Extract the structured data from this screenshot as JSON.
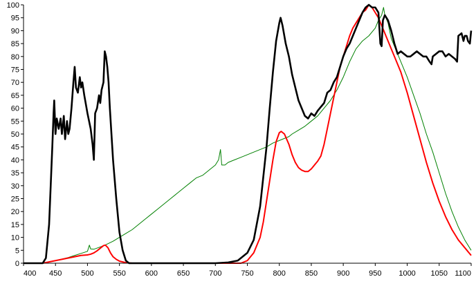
{
  "chart_data": {
    "type": "line",
    "title": "",
    "xlabel": "",
    "ylabel": "",
    "xlim": [
      400,
      1100
    ],
    "ylim": [
      0,
      100
    ],
    "x_ticks": [
      400,
      450,
      500,
      550,
      600,
      650,
      700,
      750,
      800,
      850,
      900,
      950,
      1000,
      1050,
      1100
    ],
    "y_ticks": [
      0,
      5,
      10,
      15,
      20,
      25,
      30,
      35,
      40,
      45,
      50,
      55,
      60,
      65,
      70,
      75,
      80,
      85,
      90,
      95,
      100
    ],
    "grid": false,
    "legend": "none",
    "series": [
      {
        "color": "#000000",
        "points": [
          [
            400,
            0
          ],
          [
            430,
            0
          ],
          [
            435,
            2
          ],
          [
            440,
            15
          ],
          [
            445,
            45
          ],
          [
            447,
            58
          ],
          [
            448,
            63
          ],
          [
            450,
            50
          ],
          [
            452,
            56
          ],
          [
            455,
            52
          ],
          [
            458,
            56
          ],
          [
            460,
            50
          ],
          [
            463,
            57
          ],
          [
            465,
            48
          ],
          [
            468,
            55
          ],
          [
            470,
            50
          ],
          [
            472,
            52
          ],
          [
            475,
            60
          ],
          [
            478,
            70
          ],
          [
            480,
            76
          ],
          [
            482,
            68
          ],
          [
            485,
            66
          ],
          [
            488,
            72
          ],
          [
            490,
            68
          ],
          [
            492,
            70
          ],
          [
            495,
            65
          ],
          [
            500,
            58
          ],
          [
            505,
            52
          ],
          [
            508,
            46
          ],
          [
            510,
            40
          ],
          [
            512,
            58
          ],
          [
            515,
            60
          ],
          [
            518,
            65
          ],
          [
            520,
            62
          ],
          [
            522,
            67
          ],
          [
            525,
            70
          ],
          [
            527,
            82
          ],
          [
            529,
            80
          ],
          [
            531,
            76
          ],
          [
            533,
            70
          ],
          [
            535,
            60
          ],
          [
            540,
            40
          ],
          [
            545,
            25
          ],
          [
            550,
            12
          ],
          [
            555,
            5
          ],
          [
            560,
            1
          ],
          [
            565,
            0
          ],
          [
            700,
            0
          ],
          [
            720,
            0.3
          ],
          [
            735,
            1
          ],
          [
            750,
            4
          ],
          [
            760,
            9
          ],
          [
            770,
            22
          ],
          [
            780,
            45
          ],
          [
            785,
            60
          ],
          [
            790,
            74
          ],
          [
            795,
            86
          ],
          [
            800,
            93
          ],
          [
            802,
            95
          ],
          [
            805,
            92
          ],
          [
            810,
            85
          ],
          [
            815,
            80
          ],
          [
            820,
            73
          ],
          [
            825,
            68
          ],
          [
            830,
            63
          ],
          [
            835,
            60
          ],
          [
            840,
            57
          ],
          [
            845,
            56
          ],
          [
            850,
            58
          ],
          [
            855,
            57
          ],
          [
            860,
            59
          ],
          [
            870,
            62
          ],
          [
            875,
            66
          ],
          [
            880,
            67
          ],
          [
            885,
            70
          ],
          [
            890,
            72
          ],
          [
            895,
            76
          ],
          [
            900,
            80
          ],
          [
            905,
            83
          ],
          [
            910,
            85
          ],
          [
            915,
            88
          ],
          [
            920,
            91
          ],
          [
            925,
            94
          ],
          [
            930,
            97
          ],
          [
            935,
            99
          ],
          [
            940,
            100
          ],
          [
            945,
            99
          ],
          [
            950,
            99
          ],
          [
            955,
            97
          ],
          [
            958,
            85
          ],
          [
            960,
            84
          ],
          [
            962,
            94
          ],
          [
            965,
            96
          ],
          [
            970,
            94
          ],
          [
            975,
            90
          ],
          [
            980,
            85
          ],
          [
            985,
            81
          ],
          [
            990,
            82
          ],
          [
            995,
            81
          ],
          [
            1000,
            80
          ],
          [
            1005,
            80
          ],
          [
            1010,
            81
          ],
          [
            1015,
            82
          ],
          [
            1020,
            81
          ],
          [
            1025,
            80
          ],
          [
            1030,
            80
          ],
          [
            1035,
            78
          ],
          [
            1038,
            77
          ],
          [
            1040,
            80
          ],
          [
            1045,
            81
          ],
          [
            1050,
            82
          ],
          [
            1055,
            82
          ],
          [
            1060,
            80
          ],
          [
            1065,
            81
          ],
          [
            1070,
            80
          ],
          [
            1075,
            79
          ],
          [
            1078,
            78
          ],
          [
            1080,
            88
          ],
          [
            1085,
            89
          ],
          [
            1088,
            86
          ],
          [
            1090,
            88
          ],
          [
            1093,
            88
          ],
          [
            1095,
            86
          ],
          [
            1098,
            85
          ],
          [
            1100,
            90
          ]
        ]
      },
      {
        "color": "#ff0000",
        "points": [
          [
            400,
            0
          ],
          [
            430,
            0
          ],
          [
            440,
            0.5
          ],
          [
            450,
            1
          ],
          [
            460,
            1.5
          ],
          [
            470,
            2
          ],
          [
            480,
            2.5
          ],
          [
            490,
            3
          ],
          [
            500,
            3.2
          ],
          [
            505,
            3.5
          ],
          [
            510,
            4
          ],
          [
            515,
            4.8
          ],
          [
            520,
            5.8
          ],
          [
            525,
            6.8
          ],
          [
            528,
            7
          ],
          [
            532,
            6
          ],
          [
            536,
            4
          ],
          [
            540,
            2.5
          ],
          [
            545,
            1.5
          ],
          [
            550,
            0.8
          ],
          [
            560,
            0.2
          ],
          [
            570,
            0
          ],
          [
            740,
            0
          ],
          [
            750,
            1
          ],
          [
            760,
            4
          ],
          [
            770,
            10
          ],
          [
            775,
            16
          ],
          [
            780,
            24
          ],
          [
            785,
            32
          ],
          [
            790,
            40
          ],
          [
            795,
            47
          ],
          [
            800,
            50.5
          ],
          [
            803,
            51
          ],
          [
            808,
            50
          ],
          [
            815,
            46
          ],
          [
            820,
            42
          ],
          [
            825,
            39
          ],
          [
            830,
            37
          ],
          [
            835,
            36
          ],
          [
            840,
            35.5
          ],
          [
            845,
            35.5
          ],
          [
            850,
            36.5
          ],
          [
            855,
            38
          ],
          [
            860,
            39.5
          ],
          [
            865,
            41.5
          ],
          [
            870,
            46
          ],
          [
            875,
            52
          ],
          [
            880,
            58
          ],
          [
            885,
            64
          ],
          [
            890,
            70
          ],
          [
            895,
            76
          ],
          [
            900,
            80
          ],
          [
            905,
            84
          ],
          [
            910,
            88
          ],
          [
            915,
            91
          ],
          [
            920,
            93
          ],
          [
            925,
            95
          ],
          [
            930,
            97
          ],
          [
            935,
            98
          ],
          [
            940,
            100
          ],
          [
            945,
            99
          ],
          [
            950,
            97
          ],
          [
            955,
            95
          ],
          [
            960,
            92
          ],
          [
            965,
            89
          ],
          [
            970,
            86
          ],
          [
            975,
            83
          ],
          [
            980,
            80
          ],
          [
            990,
            74
          ],
          [
            1000,
            66
          ],
          [
            1010,
            57
          ],
          [
            1020,
            48
          ],
          [
            1030,
            39
          ],
          [
            1040,
            31
          ],
          [
            1050,
            24
          ],
          [
            1060,
            18
          ],
          [
            1070,
            13
          ],
          [
            1080,
            9
          ],
          [
            1090,
            6
          ],
          [
            1100,
            3
          ]
        ]
      },
      {
        "color": "#008000",
        "points": [
          [
            400,
            0
          ],
          [
            430,
            0
          ],
          [
            440,
            0.5
          ],
          [
            450,
            1
          ],
          [
            460,
            1.6
          ],
          [
            470,
            2.2
          ],
          [
            480,
            3
          ],
          [
            490,
            3.8
          ],
          [
            500,
            4.6
          ],
          [
            503,
            7
          ],
          [
            505,
            5.5
          ],
          [
            510,
            5.4
          ],
          [
            520,
            6.3
          ],
          [
            530,
            7.3
          ],
          [
            540,
            8.5
          ],
          [
            550,
            10
          ],
          [
            560,
            11.5
          ],
          [
            570,
            13
          ],
          [
            580,
            15
          ],
          [
            590,
            17
          ],
          [
            600,
            19
          ],
          [
            610,
            21
          ],
          [
            620,
            23
          ],
          [
            630,
            25
          ],
          [
            640,
            27
          ],
          [
            650,
            29
          ],
          [
            660,
            31
          ],
          [
            670,
            33
          ],
          [
            680,
            34
          ],
          [
            690,
            36
          ],
          [
            700,
            38
          ],
          [
            705,
            40
          ],
          [
            708,
            44
          ],
          [
            710,
            38
          ],
          [
            715,
            38
          ],
          [
            720,
            39
          ],
          [
            730,
            40
          ],
          [
            740,
            41
          ],
          [
            750,
            42
          ],
          [
            760,
            43
          ],
          [
            770,
            44
          ],
          [
            780,
            45
          ],
          [
            790,
            46.5
          ],
          [
            800,
            47.5
          ],
          [
            810,
            48.5
          ],
          [
            815,
            49
          ],
          [
            820,
            50
          ],
          [
            830,
            51.5
          ],
          [
            840,
            53
          ],
          [
            850,
            55
          ],
          [
            860,
            57
          ],
          [
            870,
            60
          ],
          [
            880,
            63
          ],
          [
            890,
            67
          ],
          [
            900,
            72
          ],
          [
            910,
            78
          ],
          [
            920,
            83
          ],
          [
            930,
            86
          ],
          [
            940,
            88
          ],
          [
            950,
            91
          ],
          [
            955,
            94
          ],
          [
            960,
            96
          ],
          [
            963,
            99
          ],
          [
            965,
            96
          ],
          [
            970,
            93
          ],
          [
            975,
            87
          ],
          [
            980,
            84
          ],
          [
            985,
            81
          ],
          [
            990,
            78
          ],
          [
            1000,
            72
          ],
          [
            1010,
            65
          ],
          [
            1020,
            58
          ],
          [
            1030,
            50
          ],
          [
            1040,
            43
          ],
          [
            1050,
            35
          ],
          [
            1060,
            27
          ],
          [
            1070,
            20
          ],
          [
            1080,
            14
          ],
          [
            1090,
            9
          ],
          [
            1100,
            5
          ]
        ]
      }
    ]
  }
}
